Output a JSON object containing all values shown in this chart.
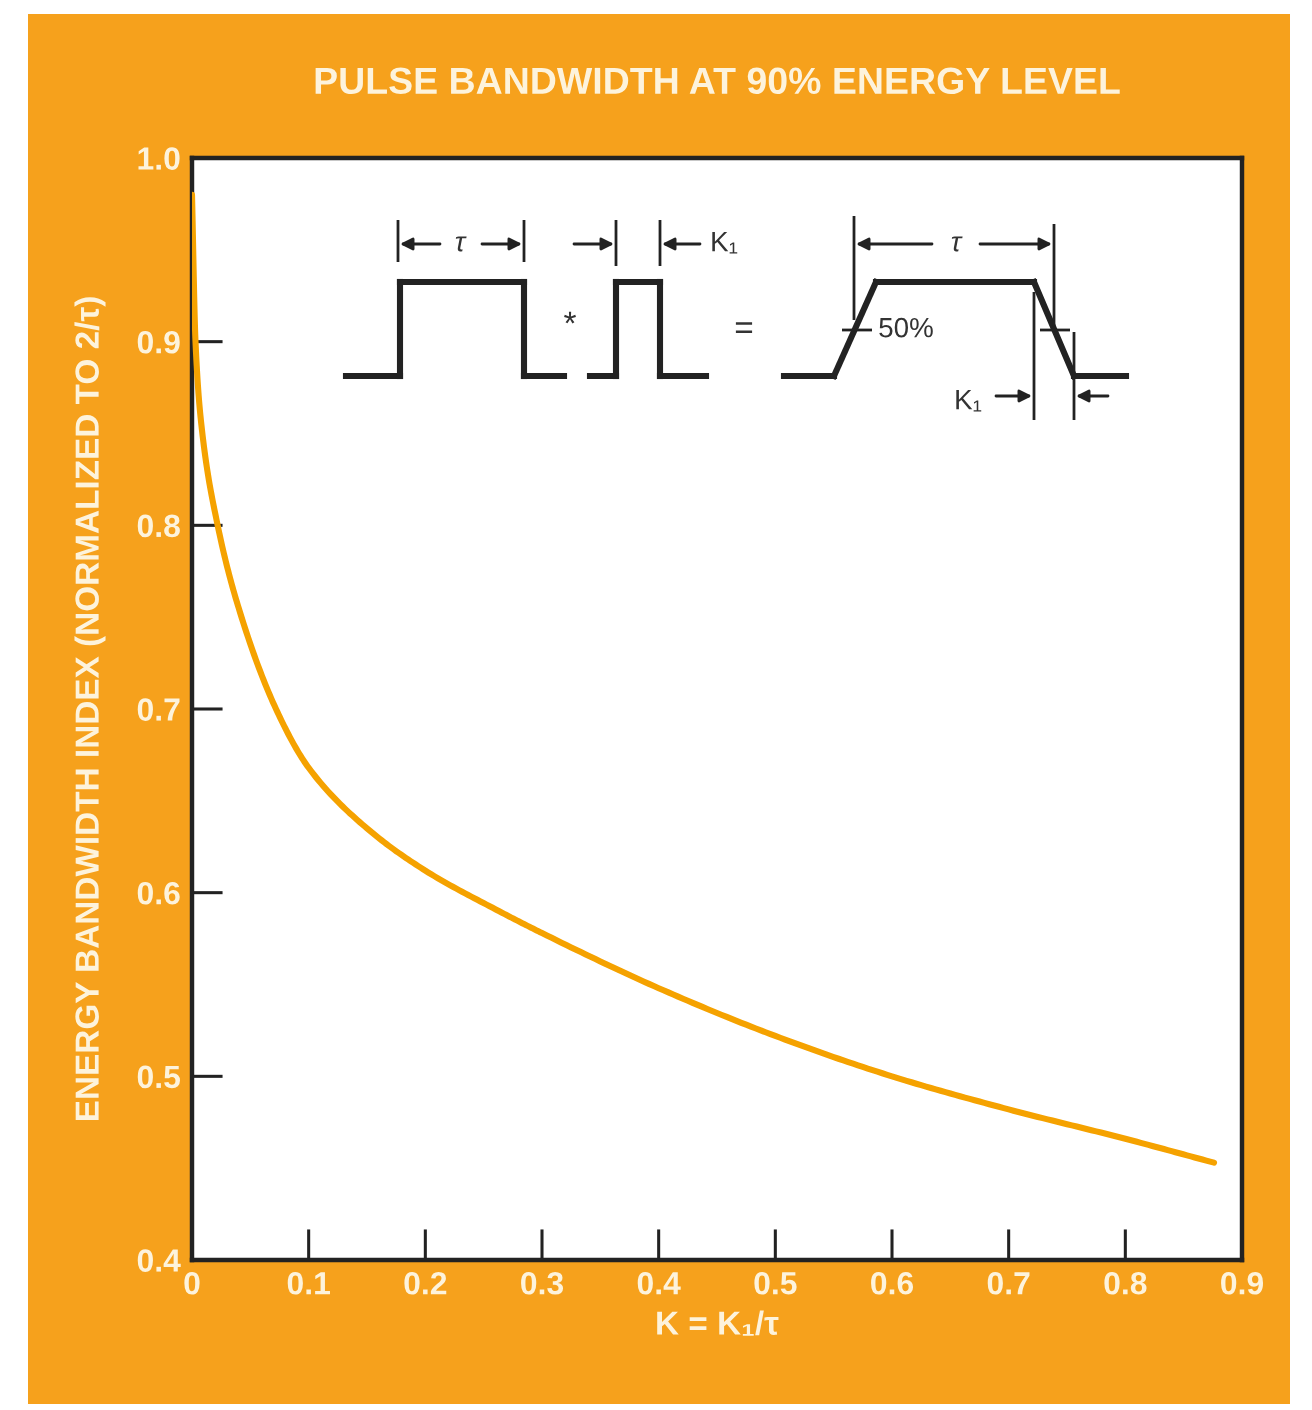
{
  "chart_data": {
    "type": "line",
    "title": "PULSE BANDWIDTH AT 90% ENERGY LEVEL",
    "xlabel": "K = K₁/τ",
    "ylabel": "ENERGY BANDWIDTH INDEX (NORMALIZED TO 2/τ)",
    "annotations": [
      "τ",
      "*",
      "K₁",
      "=",
      "τ",
      "50%",
      "K₁"
    ],
    "series": [
      {
        "color": "#f5a200",
        "x": [
          0.0,
          0.003,
          0.008,
          0.022,
          0.04,
          0.072,
          0.1,
          0.15,
          0.2,
          0.263,
          0.3,
          0.4,
          0.5,
          0.6,
          0.7,
          0.8,
          0.876
        ],
        "values": [
          0.98,
          0.9,
          0.855,
          0.8,
          0.755,
          0.7,
          0.668,
          0.635,
          0.612,
          0.59,
          0.578,
          0.548,
          0.522,
          0.5,
          0.482,
          0.466,
          0.453
        ]
      }
    ],
    "xlim": [
      0,
      0.9
    ],
    "ylim": [
      0.4,
      1.0
    ],
    "xticks": [
      0,
      0.1,
      0.2,
      0.3,
      0.4,
      0.5,
      0.6,
      0.7,
      0.8,
      0.9
    ],
    "yticks": [
      0.4,
      0.5,
      0.6,
      0.7,
      0.8,
      0.9,
      {
        "value": 1,
        "label": "1.0"
      }
    ],
    "line_style": "solid"
  }
}
